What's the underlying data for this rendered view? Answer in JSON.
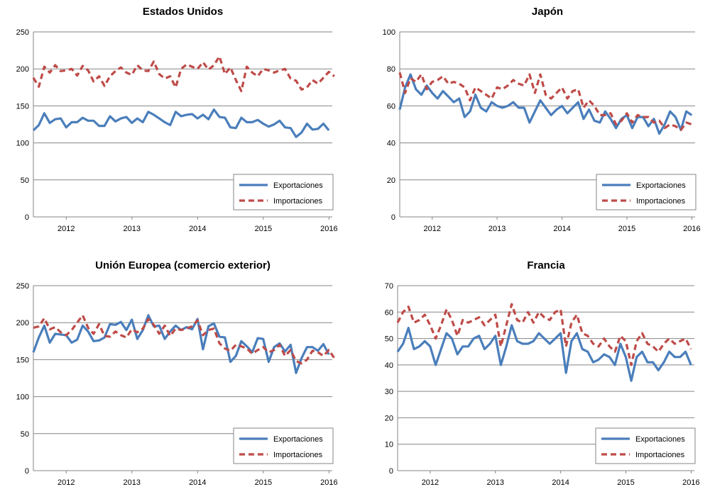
{
  "legend_labels": [
    "Exportaciones",
    "Importaciones"
  ],
  "colors": {
    "exportaciones": "#4a7ebb",
    "importaciones": "#be4b48",
    "grid": "#868686"
  },
  "chart_data": [
    {
      "type": "line",
      "title": "Estados Unidos",
      "ylim": [
        0,
        250
      ],
      "yticks": [
        0,
        50,
        100,
        150,
        200,
        250
      ],
      "xlim": [
        2011.5,
        2016.05
      ],
      "xticks": [
        "2012",
        "2013",
        "2014",
        "2015",
        "2016"
      ],
      "grid": true,
      "legend": "bottom-right",
      "series": [
        {
          "name": "Exportaciones",
          "style": "solid",
          "x_start": 2011.5,
          "x_step": 0.0833,
          "values": [
            117,
            124,
            140,
            127,
            132,
            133,
            121,
            128,
            128,
            134,
            130,
            130,
            123,
            123,
            136,
            129,
            133,
            135,
            127,
            133,
            128,
            142,
            138,
            133,
            128,
            124,
            142,
            136,
            138,
            139,
            133,
            138,
            132,
            145,
            135,
            134,
            121,
            120,
            134,
            128,
            128,
            131,
            126,
            122,
            125,
            130,
            121,
            120,
            108,
            114,
            126,
            118,
            119,
            126,
            117
          ]
        },
        {
          "name": "Importaciones",
          "style": "dashed",
          "x_start": 2011.5,
          "x_step": 0.0833,
          "values": [
            188,
            176,
            203,
            195,
            205,
            197,
            198,
            200,
            191,
            204,
            198,
            183,
            190,
            177,
            190,
            197,
            202,
            195,
            192,
            205,
            198,
            197,
            210,
            193,
            187,
            190,
            175,
            200,
            206,
            203,
            200,
            209,
            199,
            205,
            217,
            193,
            202,
            185,
            170,
            203,
            195,
            190,
            200,
            198,
            195,
            198,
            200,
            187,
            184,
            172,
            175,
            185,
            180,
            188,
            196,
            190
          ]
        }
      ]
    },
    {
      "type": "line",
      "title": "Japón",
      "ylim": [
        0,
        100
      ],
      "yticks": [
        0,
        20,
        40,
        60,
        80,
        100
      ],
      "xlim": [
        2011.5,
        2016.05
      ],
      "xticks": [
        "2012",
        "2013",
        "2014",
        "2015",
        "2016"
      ],
      "grid": true,
      "legend": "bottom-right",
      "series": [
        {
          "name": "Exportaciones",
          "style": "solid",
          "x_start": 2011.5,
          "x_step": 0.0833,
          "values": [
            58,
            70,
            77,
            69,
            66,
            71,
            67,
            64,
            68,
            65,
            62,
            64,
            54,
            57,
            66,
            59,
            57,
            62,
            60,
            59,
            60,
            62,
            59,
            59,
            51,
            57,
            63,
            59,
            55,
            58,
            60,
            56,
            59,
            62,
            53,
            58,
            52,
            51,
            57,
            53,
            48,
            53,
            55,
            48,
            54,
            54,
            49,
            53,
            45,
            50,
            57,
            54,
            47,
            57,
            55
          ]
        },
        {
          "name": "Importaciones",
          "style": "dashed",
          "x_start": 2011.5,
          "x_step": 0.0833,
          "values": [
            78,
            67,
            75,
            73,
            77,
            69,
            73,
            74,
            76,
            72,
            73,
            72,
            70,
            63,
            70,
            68,
            66,
            64,
            70,
            69,
            71,
            74,
            72,
            71,
            77,
            67,
            77,
            66,
            64,
            67,
            70,
            64,
            68,
            69,
            59,
            63,
            60,
            55,
            55,
            56,
            50,
            52,
            56,
            51,
            55,
            54,
            54,
            51,
            52,
            48,
            50,
            49,
            47,
            51,
            50
          ]
        }
      ]
    },
    {
      "type": "line",
      "title": "Unión Europea (comercio exterior)",
      "ylim": [
        0,
        250
      ],
      "yticks": [
        0,
        50,
        100,
        150,
        200,
        250
      ],
      "xlim": [
        2011.5,
        2016.05
      ],
      "xticks": [
        "2012",
        "2013",
        "2014",
        "2015",
        "2016"
      ],
      "grid": true,
      "legend": "bottom-right",
      "series": [
        {
          "name": "Exportaciones",
          "style": "solid",
          "x_start": 2011.5,
          "x_step": 0.0833,
          "values": [
            160,
            180,
            196,
            173,
            185,
            184,
            183,
            173,
            177,
            196,
            188,
            175,
            176,
            180,
            198,
            197,
            201,
            190,
            204,
            178,
            190,
            210,
            195,
            196,
            178,
            188,
            196,
            190,
            194,
            191,
            205,
            164,
            195,
            199,
            181,
            180,
            147,
            155,
            175,
            168,
            160,
            179,
            178,
            147,
            167,
            172,
            161,
            170,
            132,
            152,
            167,
            167,
            162,
            171,
            157
          ]
        },
        {
          "name": "Importaciones",
          "style": "dashed",
          "x_start": 2011.5,
          "x_step": 0.0833,
          "values": [
            193,
            195,
            206,
            191,
            194,
            187,
            183,
            190,
            200,
            210,
            193,
            185,
            198,
            182,
            181,
            188,
            183,
            180,
            191,
            187,
            192,
            205,
            197,
            185,
            196,
            182,
            192,
            190,
            192,
            195,
            203,
            183,
            190,
            192,
            172,
            165,
            162,
            170,
            168,
            165,
            158,
            163,
            167,
            160,
            163,
            170,
            155,
            163,
            148,
            145,
            150,
            162,
            160,
            155,
            163,
            152
          ]
        }
      ]
    },
    {
      "type": "line",
      "title": "Francia",
      "ylim": [
        0,
        70
      ],
      "yticks": [
        0,
        10,
        20,
        30,
        40,
        50,
        60,
        70
      ],
      "xlim": [
        2011.5,
        2016.05
      ],
      "xticks": [
        "2012",
        "2013",
        "2014",
        "2015",
        "2016"
      ],
      "grid": true,
      "legend": "bottom-right",
      "series": [
        {
          "name": "Exportaciones",
          "style": "solid",
          "x_start": 2011.5,
          "x_step": 0.0833,
          "values": [
            45,
            48,
            54,
            46,
            47,
            49,
            47,
            40,
            46,
            52,
            50,
            44,
            47,
            47,
            50,
            51,
            46,
            48,
            51,
            40,
            47,
            55,
            49,
            48,
            48,
            49,
            52,
            50,
            48,
            50,
            52,
            37,
            49,
            52,
            46,
            45,
            41,
            42,
            44,
            43,
            40,
            48,
            43,
            34,
            43,
            45,
            41,
            41,
            38,
            41,
            45,
            43,
            43,
            45,
            40
          ]
        },
        {
          "name": "Importaciones",
          "style": "dashed",
          "x_start": 2011.5,
          "x_step": 0.0833,
          "values": [
            56,
            60,
            62,
            56,
            57,
            59,
            55,
            50,
            55,
            61,
            57,
            51,
            57,
            56,
            57,
            58,
            55,
            57,
            59,
            47,
            55,
            63,
            57,
            56,
            60,
            56,
            60,
            58,
            57,
            60,
            61,
            47,
            56,
            59,
            52,
            51,
            48,
            47,
            50,
            47,
            45,
            51,
            49,
            40,
            49,
            52,
            48,
            47,
            45,
            48,
            50,
            48,
            49,
            50,
            46
          ]
        }
      ]
    }
  ]
}
